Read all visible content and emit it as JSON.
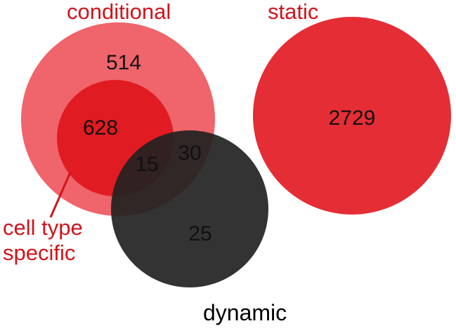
{
  "set_labels": {
    "conditional": "conditional",
    "static": "static",
    "dynamic": "dynamic",
    "cell_type_specific_line1": "cell type",
    "cell_type_specific_line2": "specific"
  },
  "region_counts": {
    "conditional_only": "514",
    "cell_type_specific_only": "628",
    "cell_type_specific_and_dynamic": "15",
    "conditional_and_dynamic": "30",
    "dynamic_only": "25",
    "static_only": "2729"
  },
  "colors": {
    "conditional_fill": "#F0646B",
    "cell_type_specific_fill": "#E11B22",
    "static_fill": "#E52D35",
    "dynamic_fill": "#222222",
    "label_red": "#D0141B",
    "label_black": "#000000",
    "count_text": "#111111"
  }
}
